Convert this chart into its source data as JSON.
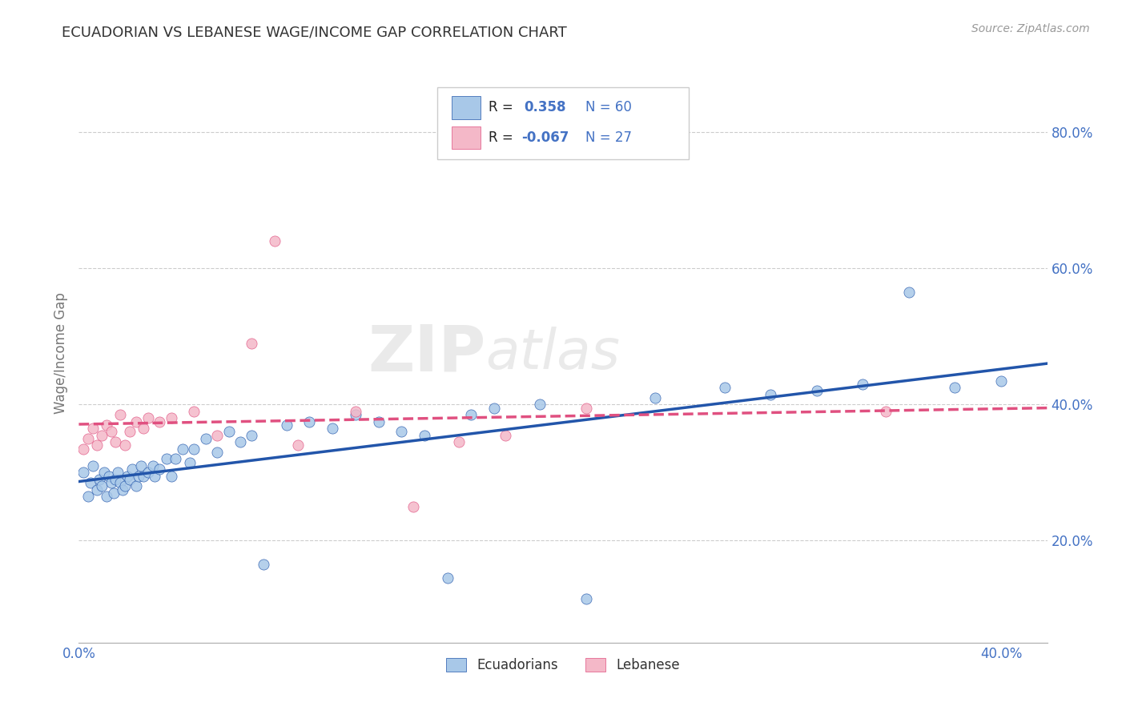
{
  "title": "ECUADORIAN VS LEBANESE WAGE/INCOME GAP CORRELATION CHART",
  "source_text": "Source: ZipAtlas.com",
  "ylabel": "Wage/Income Gap",
  "xlim": [
    0.0,
    0.42
  ],
  "ylim": [
    0.05,
    0.9
  ],
  "xticks": [
    0.0,
    0.05,
    0.1,
    0.15,
    0.2,
    0.25,
    0.3,
    0.35,
    0.4
  ],
  "yticks": [
    0.2,
    0.4,
    0.6,
    0.8
  ],
  "ytick_labels": [
    "20.0%",
    "40.0%",
    "60.0%",
    "80.0%"
  ],
  "xtick_labels": [
    "0.0%",
    "",
    "",
    "",
    "",
    "",
    "",
    "",
    "40.0%"
  ],
  "blue_color": "#a8c8e8",
  "pink_color": "#f4b8c8",
  "blue_line_color": "#2255aa",
  "pink_line_color": "#e05080",
  "watermark_zip": "ZIP",
  "watermark_atlas": "atlas",
  "background_color": "#ffffff",
  "grid_color": "#cccccc",
  "tick_color": "#4472c4",
  "blue_scatter_x": [
    0.002,
    0.004,
    0.005,
    0.006,
    0.008,
    0.009,
    0.01,
    0.011,
    0.012,
    0.013,
    0.014,
    0.015,
    0.016,
    0.017,
    0.018,
    0.019,
    0.02,
    0.021,
    0.022,
    0.023,
    0.025,
    0.026,
    0.027,
    0.028,
    0.03,
    0.032,
    0.033,
    0.035,
    0.038,
    0.04,
    0.042,
    0.045,
    0.048,
    0.05,
    0.055,
    0.06,
    0.065,
    0.07,
    0.075,
    0.08,
    0.09,
    0.1,
    0.11,
    0.12,
    0.13,
    0.14,
    0.15,
    0.16,
    0.17,
    0.18,
    0.2,
    0.22,
    0.25,
    0.28,
    0.3,
    0.32,
    0.34,
    0.36,
    0.38,
    0.4
  ],
  "blue_scatter_y": [
    0.3,
    0.265,
    0.285,
    0.31,
    0.275,
    0.29,
    0.28,
    0.3,
    0.265,
    0.295,
    0.285,
    0.27,
    0.29,
    0.3,
    0.285,
    0.275,
    0.28,
    0.295,
    0.29,
    0.305,
    0.28,
    0.295,
    0.31,
    0.295,
    0.3,
    0.31,
    0.295,
    0.305,
    0.32,
    0.295,
    0.32,
    0.335,
    0.315,
    0.335,
    0.35,
    0.33,
    0.36,
    0.345,
    0.355,
    0.165,
    0.37,
    0.375,
    0.365,
    0.385,
    0.375,
    0.36,
    0.355,
    0.145,
    0.385,
    0.395,
    0.4,
    0.115,
    0.41,
    0.425,
    0.415,
    0.42,
    0.43,
    0.565,
    0.425,
    0.435
  ],
  "pink_scatter_x": [
    0.002,
    0.004,
    0.006,
    0.008,
    0.01,
    0.012,
    0.014,
    0.016,
    0.018,
    0.02,
    0.022,
    0.025,
    0.028,
    0.03,
    0.035,
    0.04,
    0.05,
    0.06,
    0.075,
    0.085,
    0.095,
    0.12,
    0.145,
    0.165,
    0.185,
    0.22,
    0.35
  ],
  "pink_scatter_y": [
    0.335,
    0.35,
    0.365,
    0.34,
    0.355,
    0.37,
    0.36,
    0.345,
    0.385,
    0.34,
    0.36,
    0.375,
    0.365,
    0.38,
    0.375,
    0.38,
    0.39,
    0.355,
    0.49,
    0.64,
    0.34,
    0.39,
    0.25,
    0.345,
    0.355,
    0.395,
    0.39
  ]
}
